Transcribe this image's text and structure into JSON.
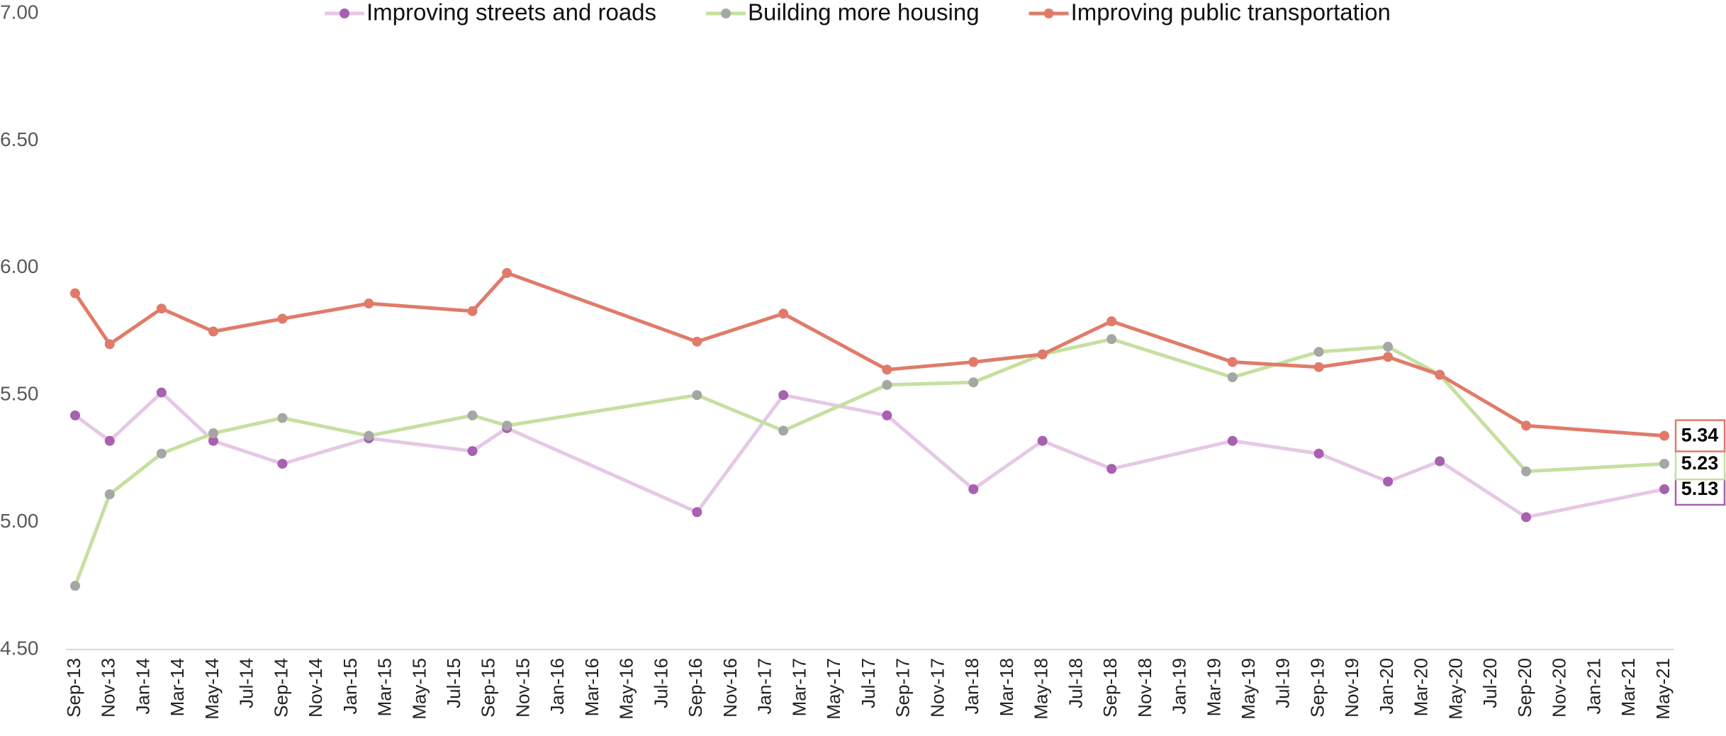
{
  "chart_data": {
    "type": "line",
    "x": [
      "2013-09",
      "2013-11",
      "2014-02",
      "2014-05",
      "2014-09",
      "2015-02",
      "2015-08",
      "2015-10",
      "2016-09",
      "2017-02",
      "2017-08",
      "2018-01",
      "2018-05",
      "2018-09",
      "2019-04",
      "2019-09",
      "2020-01",
      "2020-04",
      "2020-09",
      "2021-05"
    ],
    "series": [
      {
        "name": "Improving streets and roads",
        "color": "#e6c8e6",
        "marker_color": "#a860b0",
        "values": [
          5.42,
          5.32,
          5.51,
          5.32,
          5.23,
          5.33,
          5.28,
          5.37,
          5.04,
          5.5,
          5.42,
          5.13,
          5.32,
          5.21,
          5.32,
          5.27,
          5.16,
          5.24,
          5.02,
          5.13
        ]
      },
      {
        "name": "Building more housing",
        "color": "#c5e0a0",
        "marker_color": "#a6a6a6",
        "values": [
          4.75,
          5.11,
          5.27,
          5.35,
          5.41,
          5.34,
          5.42,
          5.38,
          5.5,
          5.36,
          5.54,
          5.55,
          5.66,
          5.72,
          5.57,
          5.67,
          5.69,
          5.58,
          5.2,
          5.23
        ]
      },
      {
        "name": "Improving public transportation",
        "color": "#e07b6a",
        "marker_color": "#e07b6a",
        "values": [
          5.9,
          5.7,
          5.84,
          5.75,
          5.8,
          5.86,
          5.83,
          5.98,
          5.71,
          5.82,
          5.6,
          5.63,
          5.66,
          5.79,
          5.63,
          5.61,
          5.65,
          5.58,
          5.38,
          5.34
        ]
      }
    ],
    "ylim": [
      4.5,
      7.0
    ],
    "yticks": [
      {
        "value": 4.5,
        "label": "4.50"
      },
      {
        "value": 5,
        "label": "5.00"
      },
      {
        "value": 5.5,
        "label": "5.50"
      },
      {
        "value": 6,
        "label": "6.00"
      },
      {
        "value": 6.5,
        "label": "6.50"
      },
      {
        "value": 7,
        "label": "7.00"
      }
    ],
    "xlim": [
      "2013-09",
      "2021-05"
    ],
    "xticks": [
      {
        "value": "2013-09",
        "label": "Sep-13"
      },
      {
        "value": "2013-11",
        "label": "Nov-13"
      },
      {
        "value": "2014-01",
        "label": "Jan-14"
      },
      {
        "value": "2014-03",
        "label": "Mar-14"
      },
      {
        "value": "2014-05",
        "label": "May-14"
      },
      {
        "value": "2014-07",
        "label": "Jul-14"
      },
      {
        "value": "2014-09",
        "label": "Sep-14"
      },
      {
        "value": "2014-11",
        "label": "Nov-14"
      },
      {
        "value": "2015-01",
        "label": "Jan-15"
      },
      {
        "value": "2015-03",
        "label": "Mar-15"
      },
      {
        "value": "2015-05",
        "label": "May-15"
      },
      {
        "value": "2015-07",
        "label": "Jul-15"
      },
      {
        "value": "2015-09",
        "label": "Sep-15"
      },
      {
        "value": "2015-11",
        "label": "Nov-15"
      },
      {
        "value": "2016-01",
        "label": "Jan-16"
      },
      {
        "value": "2016-03",
        "label": "Mar-16"
      },
      {
        "value": "2016-05",
        "label": "May-16"
      },
      {
        "value": "2016-07",
        "label": "Jul-16"
      },
      {
        "value": "2016-09",
        "label": "Sep-16"
      },
      {
        "value": "2016-11",
        "label": "Nov-16"
      },
      {
        "value": "2017-01",
        "label": "Jan-17"
      },
      {
        "value": "2017-03",
        "label": "Mar-17"
      },
      {
        "value": "2017-05",
        "label": "May-17"
      },
      {
        "value": "2017-07",
        "label": "Jul-17"
      },
      {
        "value": "2017-09",
        "label": "Sep-17"
      },
      {
        "value": "2017-11",
        "label": "Nov-17"
      },
      {
        "value": "2018-01",
        "label": "Jan-18"
      },
      {
        "value": "2018-03",
        "label": "Mar-18"
      },
      {
        "value": "2018-05",
        "label": "May-18"
      },
      {
        "value": "2018-07",
        "label": "Jul-18"
      },
      {
        "value": "2018-09",
        "label": "Sep-18"
      },
      {
        "value": "2018-11",
        "label": "Nov-18"
      },
      {
        "value": "2019-01",
        "label": "Jan-19"
      },
      {
        "value": "2019-03",
        "label": "Mar-19"
      },
      {
        "value": "2019-05",
        "label": "May-19"
      },
      {
        "value": "2019-07",
        "label": "Jul-19"
      },
      {
        "value": "2019-09",
        "label": "Sep-19"
      },
      {
        "value": "2019-11",
        "label": "Nov-19"
      },
      {
        "value": "2020-01",
        "label": "Jan-20"
      },
      {
        "value": "2020-03",
        "label": "Mar-20"
      },
      {
        "value": "2020-05",
        "label": "May-20"
      },
      {
        "value": "2020-07",
        "label": "Jul-20"
      },
      {
        "value": "2020-09",
        "label": "Sep-20"
      },
      {
        "value": "2020-11",
        "label": "Nov-20"
      },
      {
        "value": "2021-01",
        "label": "Jan-21"
      },
      {
        "value": "2021-03",
        "label": "Mar-21"
      },
      {
        "value": "2021-05",
        "label": "May-21"
      }
    ],
    "grid": false,
    "legend": "top",
    "end_labels": true
  }
}
